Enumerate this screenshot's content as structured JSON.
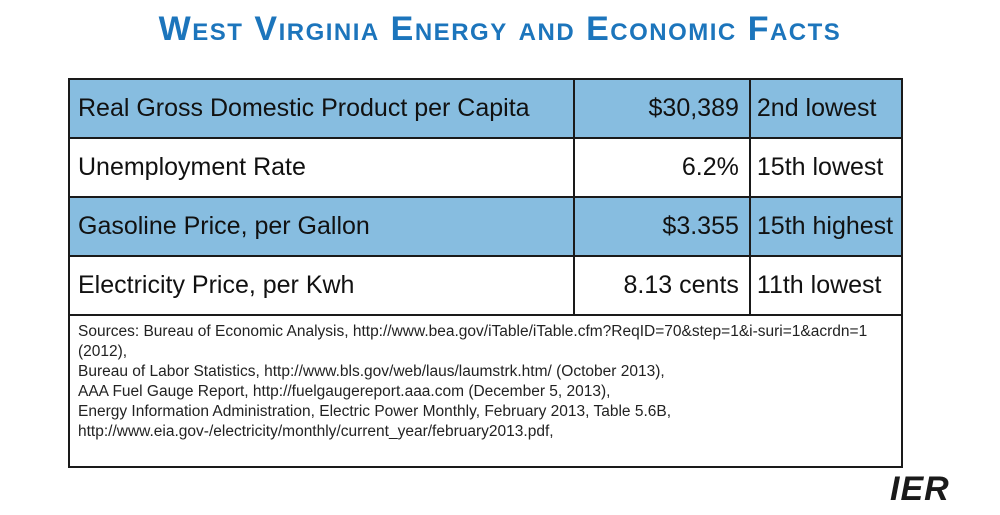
{
  "title": "West Virginia Energy and Economic Facts",
  "rows": [
    {
      "label": "Real Gross Domestic Product per Capita",
      "value": "$30,389",
      "rank": "2nd lowest"
    },
    {
      "label": "Unemployment Rate",
      "value": "6.2%",
      "rank": "15th lowest"
    },
    {
      "label": "Gasoline Price, per Gallon",
      "value": "$3.355",
      "rank": "15th highest"
    },
    {
      "label": "Electricity Price, per Kwh",
      "value": "8.13 cents",
      "rank": "11th lowest"
    }
  ],
  "sources": [
    "Sources: Bureau of Economic Analysis, http://www.bea.gov/iTable/iTable.cfm?ReqID=70&step=1&i-suri=1&acrdn=1 (2012),",
    "Bureau of Labor Statistics, http://www.bls.gov/web/laus/laumstrk.htm/ (October 2013),",
    "AAA Fuel Gauge Report, http://fuelgaugereport.aaa.com  (December 5, 2013),",
    "Energy Information Administration, Electric Power Monthly, February 2013, Table 5.6B, http://www.eia.gov-/electricity/monthly/current_year/february2013.pdf,"
  ],
  "logo": {
    "text": "IER",
    "color": "#1a1a1a",
    "accent": "#1c75bc"
  },
  "colors": {
    "title": "#1c75bc",
    "row_shade": "#87bde0",
    "border": "#1a1a1a"
  }
}
